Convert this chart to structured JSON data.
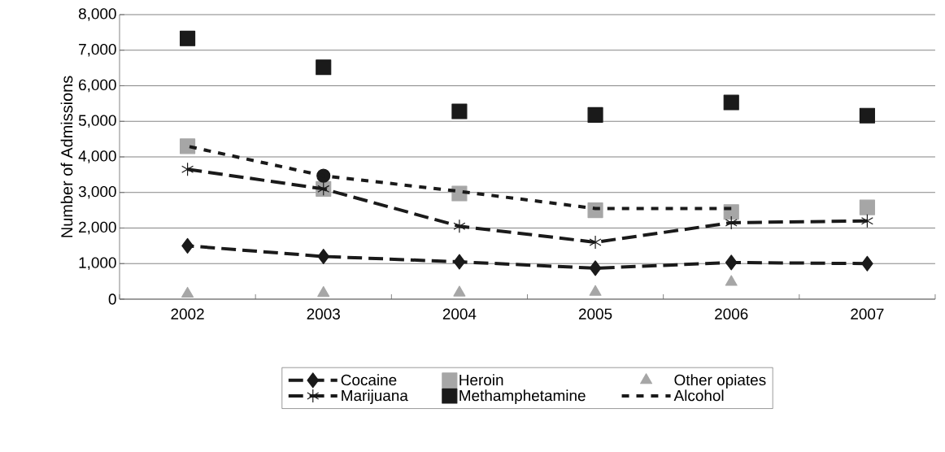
{
  "chart_data": {
    "type": "line",
    "ylabel": "Number of Admissions",
    "categories": [
      "2002",
      "2003",
      "2004",
      "2005",
      "2006",
      "2007"
    ],
    "ylim": [
      0,
      8000
    ],
    "yticks": [
      {
        "value": 0,
        "label": "0"
      },
      {
        "value": 1000,
        "label": "1,000"
      },
      {
        "value": 2000,
        "label": "2,000"
      },
      {
        "value": 3000,
        "label": "3,000"
      },
      {
        "value": 4000,
        "label": "4,000"
      },
      {
        "value": 5000,
        "label": "5,000"
      },
      {
        "value": 6000,
        "label": "6,000"
      },
      {
        "value": 7000,
        "label": "7,000"
      },
      {
        "value": 8000,
        "label": "8,000"
      }
    ],
    "grid": "y",
    "legend": "bottom",
    "series": [
      {
        "name": "Cocaine",
        "color": "#1a1a1a",
        "marker": "diamond",
        "line_style": "dashed",
        "values": [
          1500,
          1200,
          1050,
          870,
          1030,
          1000
        ]
      },
      {
        "name": "Heroin",
        "type": "scatter",
        "color": "#a6a6a6",
        "marker": "square",
        "values": [
          4300,
          3100,
          2970,
          2500,
          2450,
          2580
        ]
      },
      {
        "name": "Other opiates",
        "type": "scatter",
        "color": "#a6a6a6",
        "marker": "triangle",
        "values": [
          150,
          170,
          180,
          200,
          480,
          null
        ]
      },
      {
        "name": "Marijuana",
        "color": "#1a1a1a",
        "marker": "cross",
        "line_style": "dashed",
        "values": [
          3650,
          3100,
          2050,
          1600,
          2150,
          2200
        ]
      },
      {
        "name": "Methamphetamine",
        "type": "scatter",
        "color": "#1a1a1a",
        "marker": "square",
        "values": [
          7330,
          6520,
          5280,
          5180,
          5530,
          5160
        ]
      },
      {
        "name": "Alcohol",
        "color": "#1a1a1a",
        "marker": "none",
        "line_style": "dotted",
        "values": [
          4300,
          3470,
          3030,
          2550,
          2550,
          null
        ]
      },
      {
        "type": "scatter",
        "color": "#1a1a1a",
        "marker": "circle",
        "values": [
          null,
          3470,
          null,
          null,
          null,
          null
        ]
      }
    ]
  }
}
